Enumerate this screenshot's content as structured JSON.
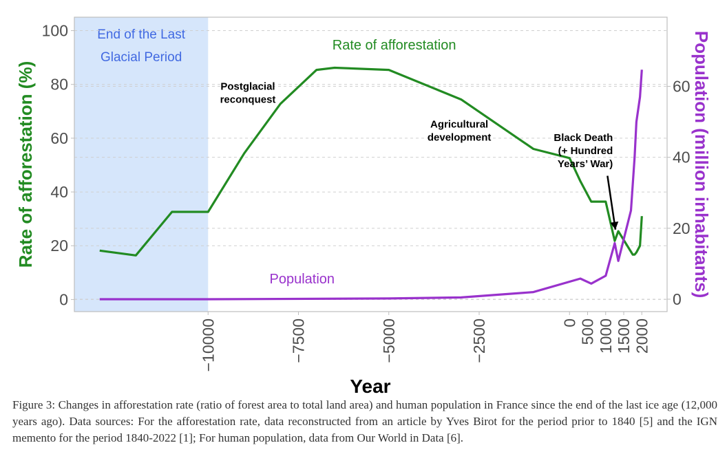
{
  "chart_data": {
    "type": "line",
    "title": "",
    "xlabel": "Year",
    "ylabel": "Rate of afforestation (%)",
    "y2label": "Population (million inhabitants)",
    "xlim": [
      -13700,
      2700
    ],
    "ylim": [
      -4.5,
      105
    ],
    "y2lim": [
      -3.5,
      79.5
    ],
    "grid": "horizontal-dashed",
    "x_ticks": [
      -10000,
      -7500,
      -5000,
      -2500,
      0,
      500,
      1000,
      1500,
      2000
    ],
    "x_tick_labels": [
      "−10000",
      "−7500",
      "−5000",
      "−2500",
      "0",
      "500",
      "1000",
      "1500",
      "2000"
    ],
    "y_ticks": [
      0,
      20,
      40,
      60,
      80,
      100
    ],
    "y_tick_labels": [
      "0",
      "20",
      "40",
      "60",
      "80",
      "100"
    ],
    "y2_ticks": [
      0,
      20,
      40,
      60
    ],
    "y2_tick_labels": [
      "0",
      "20",
      "40",
      "60"
    ],
    "shaded_region": {
      "x_from": -13700,
      "x_to": -10000,
      "label_line1": "End of the Last",
      "label_line2": "Glacial Period",
      "color": "#d6e6fb",
      "text_color": "#4169e1"
    },
    "series": [
      {
        "name": "Rate of afforestation",
        "axis": "left",
        "color": "#228b22",
        "x": [
          -13000,
          -12000,
          -11000,
          -10000,
          -9000,
          -8000,
          -7000,
          -6500,
          -5000,
          -3000,
          -1000,
          0,
          300,
          600,
          1000,
          1250,
          1350,
          1750,
          1800,
          1850,
          1950,
          2000
        ],
        "values": [
          18.2,
          16.4,
          32.6,
          32.6,
          54.4,
          72.8,
          85.4,
          86.2,
          85.4,
          74.4,
          56.0,
          52.6,
          44.0,
          36.4,
          36.4,
          21.8,
          25.4,
          16.7,
          16.7,
          17.5,
          20.0,
          31.0
        ]
      },
      {
        "name": "Population",
        "axis": "right",
        "color": "#9932cc",
        "x": [
          -13000,
          -10000,
          -5000,
          -3000,
          -1000,
          300,
          600,
          1000,
          1250,
          1350,
          1700,
          1800,
          1850,
          1950,
          2000
        ],
        "values": [
          0.0,
          0.0,
          0.2,
          0.5,
          2.0,
          5.8,
          4.4,
          6.6,
          15.8,
          10.8,
          25.0,
          40.0,
          50.0,
          57.0,
          64.7
        ]
      }
    ],
    "annotations": [
      {
        "text_lines": [
          "Rate of afforestation"
        ],
        "x": -4850,
        "y": 93,
        "color": "#228b22",
        "style": "series-label"
      },
      {
        "text_lines": [
          "Population"
        ],
        "x": -7400,
        "y": 6,
        "color": "#9932cc",
        "style": "series-label",
        "axis": "left"
      },
      {
        "text_lines": [
          "Postglacial",
          "reconquest"
        ],
        "x": -8900,
        "y": 78,
        "color": "#000000",
        "style": "note"
      },
      {
        "text_lines": [
          "Agricultural",
          "development"
        ],
        "x": -3050,
        "y": 64,
        "color": "#000000",
        "style": "note"
      },
      {
        "text_lines": [
          "Black Death",
          "(+ Hundred",
          "Years’ War)"
        ],
        "x": 1200,
        "y": 59,
        "color": "#000000",
        "style": "note-right"
      }
    ],
    "arrow": {
      "from_x": 1050,
      "from_y": 46,
      "to_x": 1270,
      "to_y": 26,
      "color": "#000000"
    }
  },
  "caption": {
    "text": "Figure 3: Changes in afforestation rate (ratio of forest area to total land area) and human population in France since the end of the last ice age (12,000 years ago). Data sources: For the afforestation rate, data reconstructed from an article by Yves Birot for the period prior to 1840 [5] and the IGN memento for the period 1840-2022 [1]; For human population, data from Our World in Data [6]."
  }
}
